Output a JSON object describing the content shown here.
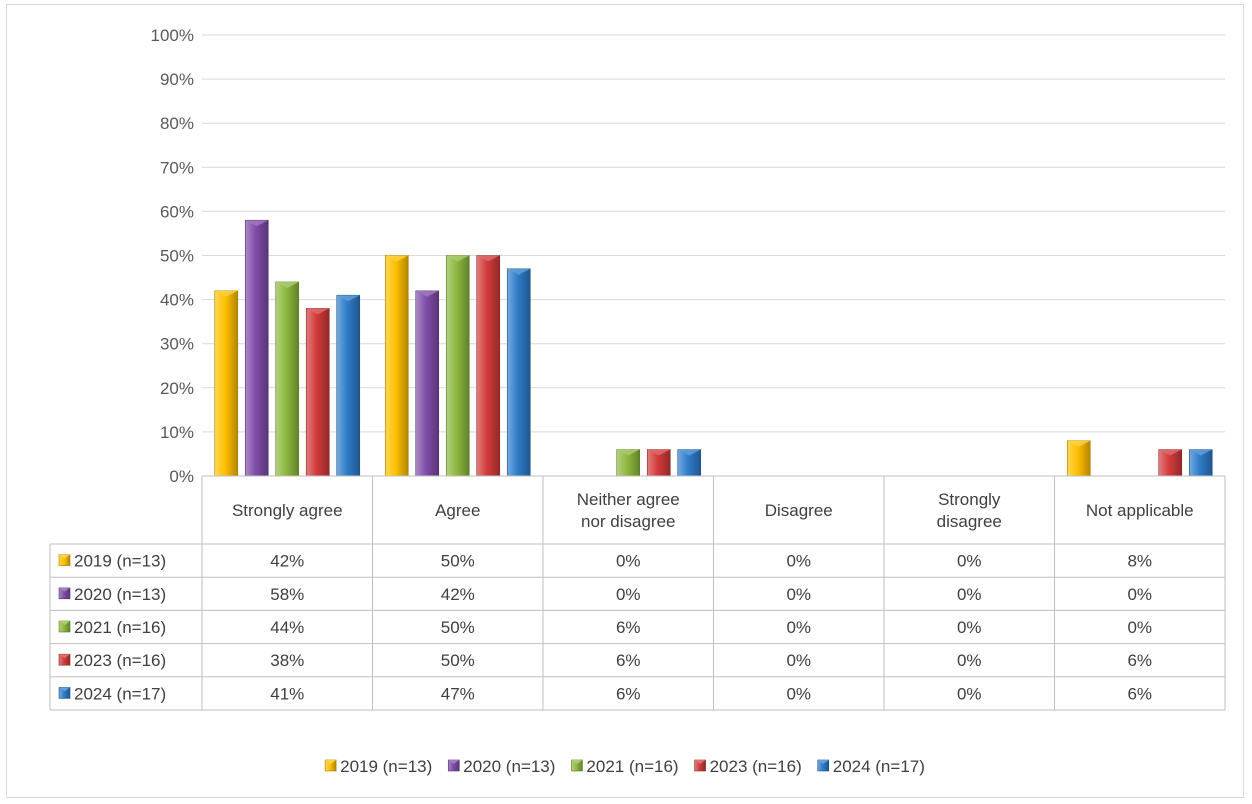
{
  "chart_data": {
    "type": "bar",
    "title": "",
    "xlabel": "",
    "ylabel": "",
    "ylim": [
      0,
      100
    ],
    "y_ticks": [
      "0%",
      "10%",
      "20%",
      "30%",
      "40%",
      "50%",
      "60%",
      "70%",
      "80%",
      "90%",
      "100%"
    ],
    "grid": true,
    "legend_position": "bottom",
    "data_table": true,
    "categories": [
      [
        "Strongly agree"
      ],
      [
        "Agree"
      ],
      [
        "Neither agree",
        "nor disagree"
      ],
      [
        "Disagree"
      ],
      [
        "Strongly",
        "disagree"
      ],
      [
        "Not applicable"
      ]
    ],
    "series": [
      {
        "name": "2019 (n=13)",
        "color": "#FFC000",
        "values": [
          42,
          50,
          0,
          0,
          0,
          8
        ],
        "labels": [
          "42%",
          "50%",
          "0%",
          "0%",
          "0%",
          "8%"
        ]
      },
      {
        "name": "2020 (n=13)",
        "color": "#7F4CA8",
        "values": [
          58,
          42,
          0,
          0,
          0,
          0
        ],
        "labels": [
          "58%",
          "42%",
          "0%",
          "0%",
          "0%",
          "0%"
        ]
      },
      {
        "name": "2021 (n=16)",
        "color": "#8DB83E",
        "values": [
          44,
          50,
          6,
          0,
          0,
          0
        ],
        "labels": [
          "44%",
          "50%",
          "6%",
          "0%",
          "0%",
          "0%"
        ]
      },
      {
        "name": "2023 (n=16)",
        "color": "#D23A3A",
        "values": [
          38,
          50,
          6,
          0,
          0,
          6
        ],
        "labels": [
          "38%",
          "50%",
          "6%",
          "0%",
          "0%",
          "6%"
        ]
      },
      {
        "name": "2024 (n=17)",
        "color": "#2E7CC9",
        "values": [
          41,
          47,
          6,
          0,
          0,
          6
        ],
        "labels": [
          "41%",
          "47%",
          "6%",
          "0%",
          "0%",
          "6%"
        ]
      }
    ]
  }
}
